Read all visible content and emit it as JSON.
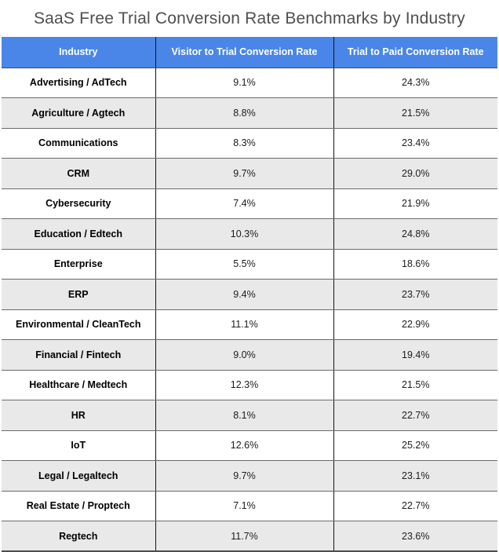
{
  "title": "SaaS Free Trial Conversion Rate Benchmarks by Industry",
  "colors": {
    "header_bg": "#4a86e8",
    "header_text": "#ffffff",
    "row_alt_bg": "#e9e9e9",
    "title_color": "#4d4f52",
    "col_divider": "#141414"
  },
  "chart_data": {
    "type": "table",
    "title": "SaaS Free Trial Conversion Rate Benchmarks by Industry",
    "columns": [
      "Industry",
      "Visitor to Trial Conversion Rate",
      "Trial to Paid Conversion Rate"
    ],
    "rows": [
      [
        "Advertising / AdTech",
        "9.1%",
        "24.3%"
      ],
      [
        "Agriculture / Agtech",
        "8.8%",
        "21.5%"
      ],
      [
        "Communications",
        "8.3%",
        "23.4%"
      ],
      [
        "CRM",
        "9.7%",
        "29.0%"
      ],
      [
        "Cybersecurity",
        "7.4%",
        "21.9%"
      ],
      [
        "Education / Edtech",
        "10.3%",
        "24.8%"
      ],
      [
        "Enterprise",
        "5.5%",
        "18.6%"
      ],
      [
        "ERP",
        "9.4%",
        "23.7%"
      ],
      [
        "Environmental / CleanTech",
        "11.1%",
        "22.9%"
      ],
      [
        "Financial / Fintech",
        "9.0%",
        "19.4%"
      ],
      [
        "Healthcare / Medtech",
        "12.3%",
        "21.5%"
      ],
      [
        "HR",
        "8.1%",
        "22.7%"
      ],
      [
        "IoT",
        "12.6%",
        "25.2%"
      ],
      [
        "Legal / Legaltech",
        "9.7%",
        "23.1%"
      ],
      [
        "Real Estate / Proptech",
        "7.1%",
        "22.7%"
      ],
      [
        "Regtech",
        "11.7%",
        "23.6%"
      ]
    ]
  }
}
